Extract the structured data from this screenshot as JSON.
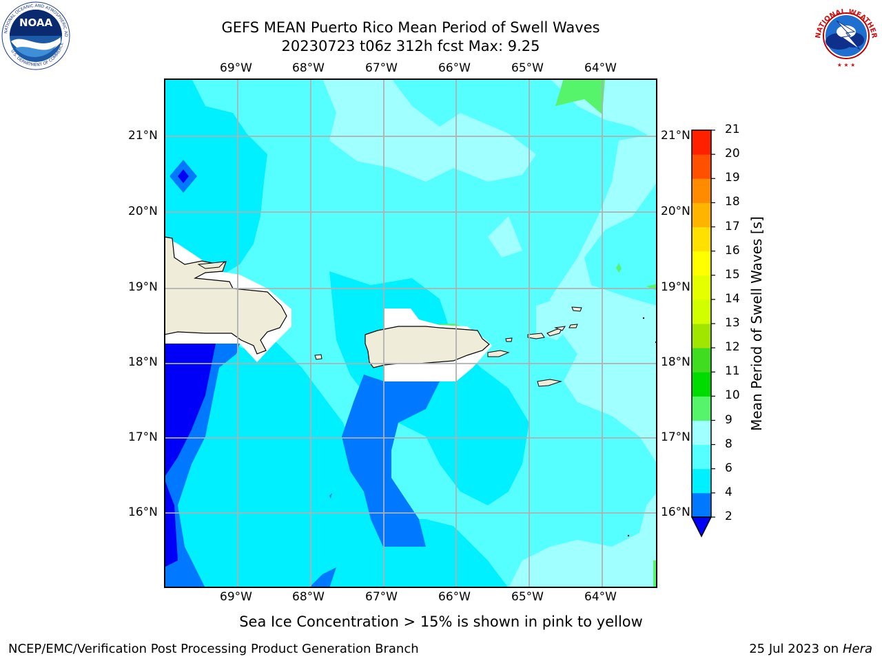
{
  "header": {
    "title_line1": "GEFS MEAN Puerto Rico Mean Period of Swell Waves",
    "title_line2": "20230723 t06z 312h fcst   Max: 9.25"
  },
  "map": {
    "lon_labels": [
      "69°W",
      "68°W",
      "67°W",
      "66°W",
      "65°W",
      "64°W"
    ],
    "lat_labels": [
      "21°N",
      "20°N",
      "19°N",
      "18°N",
      "17°N",
      "16°N"
    ],
    "colors": {
      "land": "#efedda",
      "ocean_2_4": "#0078ff",
      "ocean_below_2": "#0000f8",
      "ocean_4_6": "#00f0ff",
      "ocean_6_8": "#56ffff",
      "ocean_8_9": "#a0ffff",
      "ocean_9_10": "#55f46a",
      "grid": "#b0b0b0"
    }
  },
  "colorbar": {
    "label": "Mean Period of Swell Waves [s]",
    "ticks": [
      "2",
      "4",
      "6",
      "8",
      "9",
      "10",
      "11",
      "12",
      "13",
      "14",
      "15",
      "16",
      "17",
      "18",
      "19",
      "20",
      "21"
    ],
    "colors": [
      "#0078ff",
      "#00f0ff",
      "#56ffff",
      "#a0ffff",
      "#55f46a",
      "#00dc00",
      "#40dc20",
      "#a0e600",
      "#d2ff00",
      "#e6ff00",
      "#ffff00",
      "#ffe000",
      "#ffb400",
      "#ff8c00",
      "#ff5000",
      "#ff2000"
    ],
    "under_color": "#0000f8"
  },
  "footer": {
    "sea_ice_note": "Sea Ice Concentration > 15% is shown in pink to yellow",
    "credit": "NCEP/EMC/Verification Post Processing Product Generation Branch",
    "date": "25 Jul 2023 on",
    "machine": "Hera"
  },
  "logos": {
    "noaa_text": "NOAA",
    "noaa_ring_text": "NATIONAL OCEANIC AND ATMOSPHERIC ADMINISTRATION",
    "noaa_ring_bottom": "U.S. DEPARTMENT OF COMMERCE",
    "nws_ring_text": "NATIONAL WEATHER SERVICE"
  }
}
